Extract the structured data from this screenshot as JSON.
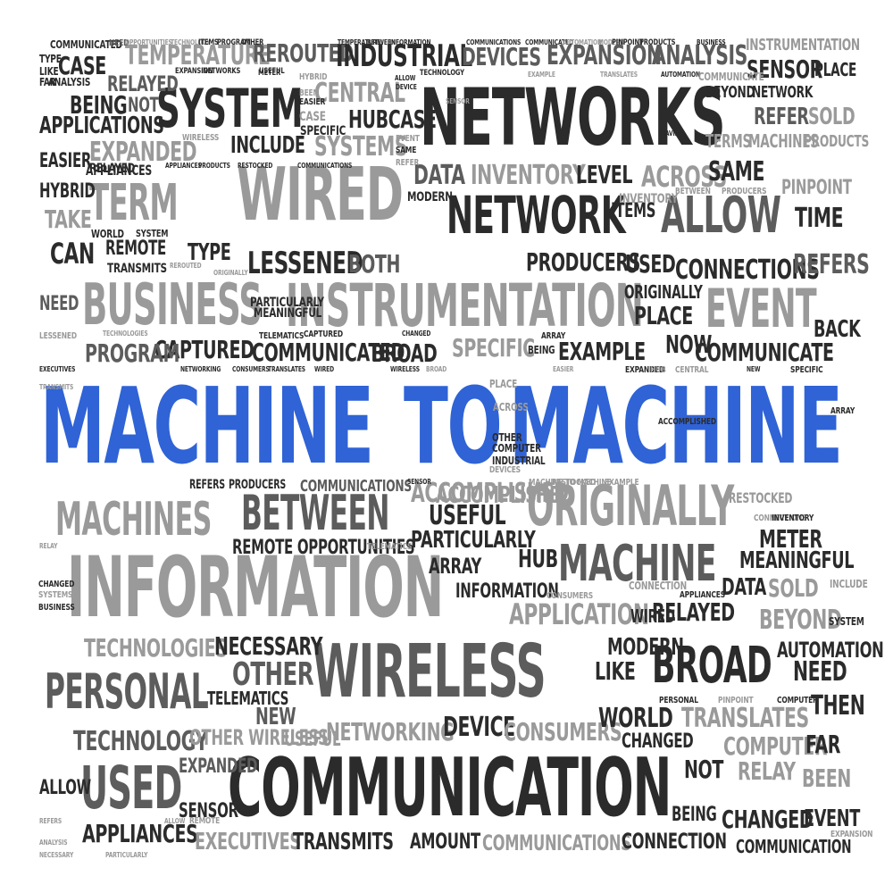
{
  "cloud": {
    "highlight": [
      "MACHINE",
      "TO",
      "MACHINE"
    ],
    "large": [
      "NETWORKS",
      "SYSTEM",
      "WIRED",
      "NETWORK",
      "ALLOW",
      "BUSINESS",
      "INSTRUMENTATION",
      "EVENT",
      "INFORMATION",
      "MACHINES",
      "BETWEEN",
      "ORIGINALLY",
      "MACHINE",
      "WIRELESS",
      "BROAD",
      "PERSONAL",
      "COMMUNICATION",
      "USED",
      "TERM"
    ],
    "medium": [
      "INSTRUMENTATION",
      "TEMPERATURE",
      "REROUTED",
      "INDUSTRIAL",
      "DEVICES",
      "EXPANSION",
      "ANALYSIS",
      "CASE",
      "SENSOR",
      "PLACE",
      "RELAYED",
      "BEING",
      "NOT",
      "APPLICATIONS",
      "CENTRAL",
      "HUBCASE",
      "BEYOND",
      "NETWORK",
      "REFER",
      "SOLD",
      "INCLUDE",
      "SYSTEMS",
      "EXPANDED",
      "TERMS",
      "MACHINES",
      "PRODUCTS",
      "EASIER",
      "APPLIANCES",
      "DATA",
      "INVENTORY",
      "LEVEL",
      "ACROSS",
      "SAME",
      "HYBRID",
      "PINPOINT",
      "TAKE",
      "ITEMS",
      "TIME",
      "CAN",
      "REMOTE",
      "TYPE",
      "LESSENED",
      "BOTH",
      "PRODUCERS",
      "USED",
      "CONNECTIONS",
      "REFERS",
      "ORIGINALLY",
      "NEED",
      "PLACE",
      "BACK",
      "CAPTURED",
      "COMMUNICATED",
      "BROAD",
      "SPECIFIC",
      "EXAMPLE",
      "NOW",
      "COMMUNICATE",
      "PROGRAM",
      "ACCOMPLISHED",
      "USEFUL",
      "PARTICULARLY",
      "ARRAY",
      "HUB",
      "METER",
      "MEANINGFUL",
      "REMOTE OPPORTUNITIES",
      "SOLD",
      "DATA",
      "INFORMATION",
      "APPLICATION",
      "WIRED",
      "RELAYED",
      "BEYOND",
      "TECHNOLOGIES",
      "NECESSARY",
      "MODERN",
      "AUTOMATION",
      "OTHER",
      "LIKE",
      "NEED",
      "THEN",
      "NETWORKING",
      "DEVICE",
      "CONSUMERS",
      "WORLD",
      "TRANSLATES",
      "TECHNOLOGY",
      "OTHER WIRELESS",
      "USEFUL",
      "CHANGED",
      "COMPUTER",
      "FAR",
      "NOT",
      "RELAY",
      "EXPANDED",
      "ALLOW",
      "BEEN",
      "SENSOR",
      "BEING",
      "CHANGED",
      "EVENT",
      "APPLIANCES",
      "EXECUTIVES",
      "TRANSMITS",
      "AMOUNT",
      "COMMUNICATIONS",
      "CONNECTION",
      "COMMUNICATION",
      "RESTOCKED",
      "ACCOMPLISHED",
      "REFERS",
      "PRODUCERS",
      "COMMUNICATIONS",
      "TELEMATICS",
      "NEW"
    ],
    "small": [
      "COMMUNICATED",
      "NEED",
      "OPPORTUNITIES",
      "TECHNOLOGY",
      "ITEMS",
      "PROGRAM",
      "OTHER",
      "TEMPERATURE",
      "BETWEEN",
      "INFORMATION",
      "COMMUNICATIONS",
      "COMMUNICATED",
      "AUTOMATION",
      "MODERN",
      "PINPOINT",
      "PRODUCTS",
      "BUSINESS",
      "TYPE",
      "LIKE",
      "FAR",
      "ANALYSIS",
      "EXPANSION",
      "NETWORKS",
      "USEFUL",
      "METER",
      "HYBRID",
      "BEEN",
      "EASIER",
      "CASE",
      "ALLOW",
      "DEVICE",
      "TECHNOLOGY",
      "SENSOR",
      "EXAMPLE",
      "TRANSLATES",
      "AUTOMATION",
      "COMMUNICATE",
      "WIRELESS",
      "SPECIFIC",
      "EVENT",
      "SAME",
      "REFER",
      "RELAYED",
      "APPLIANCES",
      "PRODUCTS",
      "RESTOCKED",
      "COMMUNICATIONS",
      "HAVING",
      "MODERN",
      "WORLD",
      "SYSTEM",
      "INVENTORY",
      "BETWEEN",
      "PRODUCERS",
      "TRANSMITS",
      "REROUTED",
      "ORIGINALLY",
      "PARTICULARLY",
      "MEANINGFUL",
      "TELEMATICS",
      "CAPTURED",
      "CHANGED",
      "LESSENED",
      "TECHNOLOGIES",
      "EXECUTIVES",
      "TRANSMITS",
      "NETWORKING",
      "CONSUMERS",
      "TRANSLATES",
      "WIRED",
      "WIRELESS",
      "BROAD",
      "BEING",
      "ARRAY",
      "EASIER",
      "EXPANDED",
      "HUB",
      "CENTRAL",
      "NEW",
      "SPECIFIC",
      "ARRAY",
      "PLACE",
      "ACROSS",
      "OTHER",
      "COMPUTER",
      "INDUSTRIAL",
      "DEVICES",
      "ACCOMPLISHED",
      "APPLIANCES",
      "TELEMATICS",
      "MACHINE TO MACHINE",
      "RESTOCKED",
      "EXAMPLE",
      "RELAY",
      "SENSOR",
      "CONNECTIONS",
      "INVENTORY",
      "CHANGED",
      "SYSTEMS",
      "BUSINESS",
      "CONNECTION",
      "INCLUDE",
      "SYSTEM",
      "PERSONAL",
      "COMPUTER",
      "CONSUMERS",
      "PINPOINT",
      "REMOTE",
      "ANALYSIS",
      "ALLOW",
      "REFERS",
      "EXPANSION",
      "NECESSARY",
      "PARTICULARLY"
    ]
  }
}
